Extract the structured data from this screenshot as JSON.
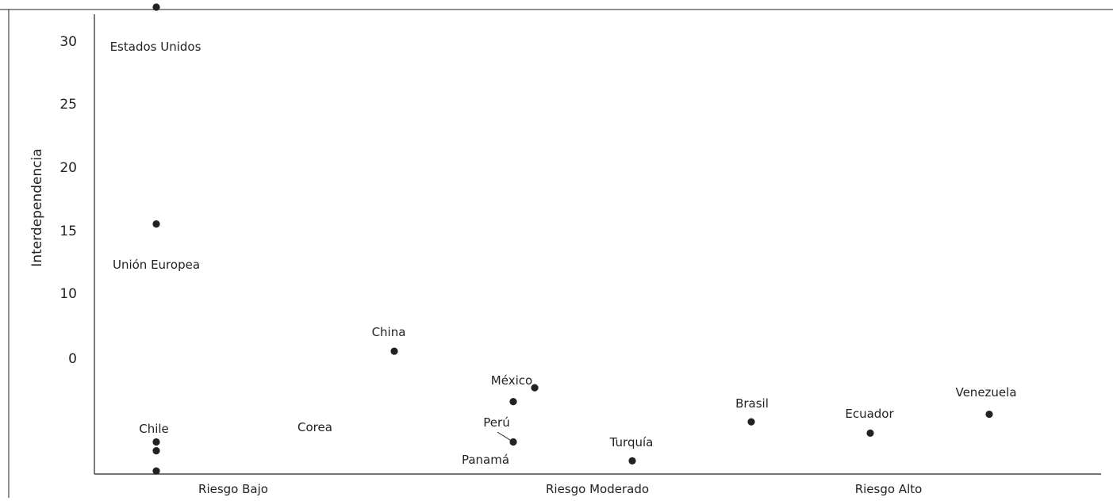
{
  "chart_data": {
    "type": "scatter",
    "title": "",
    "xlabel": "",
    "ylabel": "Interdependencia",
    "x_categories": [
      "Riesgo Bajo",
      "Riesgo Moderado",
      "Riesgo Alto"
    ],
    "y_ticks": [
      "30",
      "25",
      "20",
      "15",
      "10",
      "0"
    ],
    "grid": false,
    "legend": "none",
    "point_color": "#222222",
    "points": [
      {
        "label": "Estados Unidos",
        "x": 1.0,
        "y": 27.8
      },
      {
        "label": "Unión Europea",
        "x": 1.0,
        "y": 10.6
      },
      {
        "label": "China",
        "x": 2.0,
        "y": 0.5
      },
      {
        "label": "México",
        "x": 2.5,
        "y": -3.5
      },
      {
        "label": "",
        "x": 2.59,
        "y": -2.4
      },
      {
        "label": "Perú",
        "x": 2.5,
        "y": -6.7
      },
      {
        "label": "Panamá",
        "x": null,
        "y": null
      },
      {
        "label": "Turquía",
        "x": 3.0,
        "y": -8.2
      },
      {
        "label": "Brasil",
        "x": 3.5,
        "y": -5.1
      },
      {
        "label": "Ecuador",
        "x": 4.0,
        "y": -6.0
      },
      {
        "label": "Venezuela",
        "x": 4.5,
        "y": -4.5
      },
      {
        "label": "Chile",
        "x": 1.0,
        "y": -6.7
      },
      {
        "label": "",
        "x": 1.0,
        "y": -7.4
      },
      {
        "label": "",
        "x": 1.0,
        "y": -9.0
      },
      {
        "label": "Corea",
        "x": null,
        "y": null
      }
    ]
  }
}
